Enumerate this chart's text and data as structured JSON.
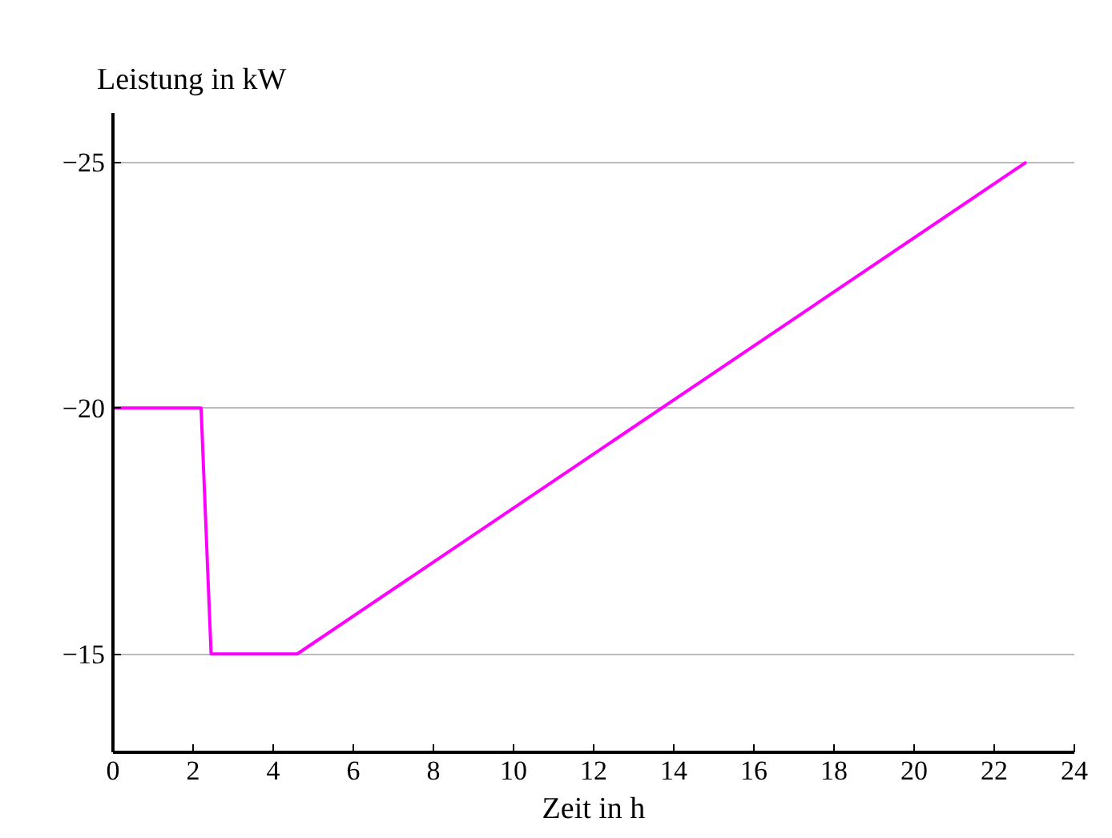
{
  "chart_data": {
    "type": "line",
    "ylabel": "Leistung in kW",
    "xlabel": "Zeit in h",
    "x": [
      0,
      2.2,
      2.45,
      4.6,
      22.8
    ],
    "series": [
      {
        "color": "#ff00ff",
        "values": [
          -20,
          -20,
          -15,
          -15,
          -25
        ]
      }
    ],
    "xlim": [
      0,
      24
    ],
    "xticks": [
      0,
      2,
      4,
      6,
      8,
      10,
      12,
      14,
      16,
      18,
      20,
      22,
      24
    ],
    "ylim": [
      -13,
      -26
    ],
    "yticks": [
      {
        "value": -25,
        "label": "−25"
      },
      {
        "value": -20,
        "label": "−20"
      },
      {
        "value": -15,
        "label": "−15"
      }
    ],
    "grid": "y",
    "marker": "none",
    "line_style": "solid"
  }
}
